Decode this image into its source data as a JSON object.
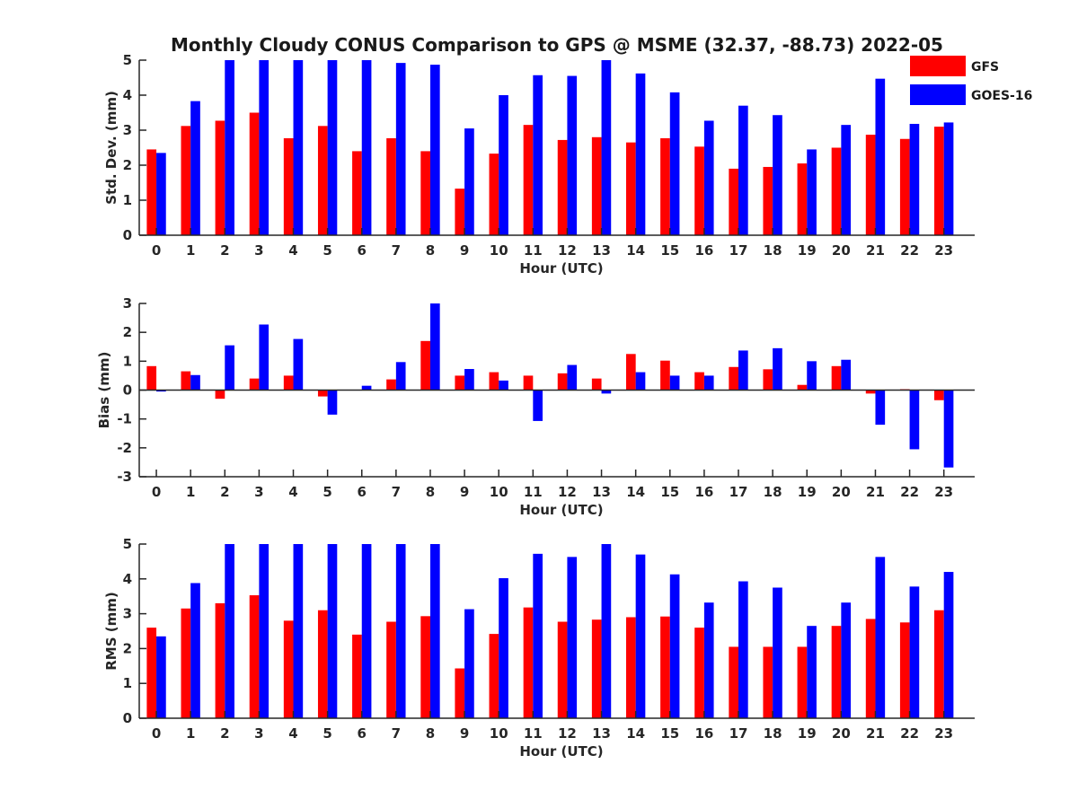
{
  "figure": {
    "title": "Monthly Cloudy CONUS Comparison to GPS @ MSME (32.37, -88.73) 2022-05"
  },
  "legend": {
    "placement": "top-right",
    "items": [
      {
        "name": "GFS",
        "color": "#ff0000"
      },
      {
        "name": "GOES-16",
        "color": "#0000ff"
      }
    ]
  },
  "chart_data": [
    {
      "type": "bar",
      "xlabel": "Hour (UTC)",
      "ylabel": "Std. Dev. (mm)",
      "ylim": [
        0,
        5
      ],
      "yticks": [
        0,
        1,
        2,
        3,
        4,
        5
      ],
      "categories": [
        "0",
        "1",
        "2",
        "3",
        "4",
        "5",
        "6",
        "7",
        "8",
        "9",
        "10",
        "11",
        "12",
        "13",
        "14",
        "15",
        "16",
        "17",
        "18",
        "19",
        "20",
        "21",
        "22",
        "23"
      ],
      "series": [
        {
          "name": "GFS",
          "color": "#ff0000",
          "values": [
            2.45,
            3.12,
            3.27,
            3.5,
            2.77,
            3.12,
            2.4,
            2.77,
            2.4,
            1.33,
            2.33,
            3.15,
            2.72,
            2.8,
            2.65,
            2.77,
            2.53,
            1.9,
            1.95,
            2.05,
            2.5,
            2.87,
            2.75,
            3.1
          ]
        },
        {
          "name": "GOES-16",
          "color": "#0000ff",
          "values": [
            2.35,
            3.83,
            5,
            5,
            5,
            5,
            5,
            4.92,
            4.87,
            3.05,
            4.0,
            4.57,
            4.55,
            5,
            4.62,
            4.08,
            3.27,
            3.7,
            3.43,
            2.45,
            3.15,
            4.47,
            3.18,
            3.22
          ]
        }
      ]
    },
    {
      "type": "bar",
      "xlabel": "Hour (UTC)",
      "ylabel": "Bias (mm)",
      "ylim": [
        -3,
        3
      ],
      "yticks": [
        -3,
        -2,
        -1,
        0,
        1,
        2,
        3
      ],
      "categories": [
        "0",
        "1",
        "2",
        "3",
        "4",
        "5",
        "6",
        "7",
        "8",
        "9",
        "10",
        "11",
        "12",
        "13",
        "14",
        "15",
        "16",
        "17",
        "18",
        "19",
        "20",
        "21",
        "22",
        "23"
      ],
      "series": [
        {
          "name": "GFS",
          "color": "#ff0000",
          "values": [
            0.83,
            0.65,
            -0.3,
            0.4,
            0.5,
            -0.22,
            0.0,
            0.37,
            1.7,
            0.5,
            0.62,
            0.5,
            0.58,
            0.4,
            1.25,
            1.02,
            0.62,
            0.8,
            0.72,
            0.18,
            0.83,
            -0.12,
            0.03,
            -0.35
          ]
        },
        {
          "name": "GOES-16",
          "color": "#0000ff",
          "values": [
            -0.05,
            0.52,
            1.55,
            2.27,
            1.77,
            -0.85,
            0.15,
            0.97,
            3.0,
            0.73,
            0.33,
            -1.07,
            0.87,
            -0.12,
            0.62,
            0.5,
            0.5,
            1.37,
            1.45,
            1.0,
            1.05,
            -1.2,
            -2.05,
            -2.68
          ]
        }
      ]
    },
    {
      "type": "bar",
      "xlabel": "Hour (UTC)",
      "ylabel": "RMS (mm)",
      "ylim": [
        0,
        5
      ],
      "yticks": [
        0,
        1,
        2,
        3,
        4,
        5
      ],
      "categories": [
        "0",
        "1",
        "2",
        "3",
        "4",
        "5",
        "6",
        "7",
        "8",
        "9",
        "10",
        "11",
        "12",
        "13",
        "14",
        "15",
        "16",
        "17",
        "18",
        "19",
        "20",
        "21",
        "22",
        "23"
      ],
      "series": [
        {
          "name": "GFS",
          "color": "#ff0000",
          "values": [
            2.6,
            3.15,
            3.3,
            3.53,
            2.8,
            3.1,
            2.4,
            2.77,
            2.93,
            1.43,
            2.42,
            3.18,
            2.77,
            2.83,
            2.9,
            2.92,
            2.6,
            2.05,
            2.05,
            2.05,
            2.65,
            2.85,
            2.75,
            3.1
          ]
        },
        {
          "name": "GOES-16",
          "color": "#0000ff",
          "values": [
            2.35,
            3.88,
            5,
            5,
            5,
            5,
            5,
            5,
            5,
            3.13,
            4.02,
            4.72,
            4.63,
            5,
            4.7,
            4.13,
            3.32,
            3.93,
            3.75,
            2.65,
            3.32,
            4.63,
            3.78,
            4.2
          ]
        }
      ]
    }
  ]
}
